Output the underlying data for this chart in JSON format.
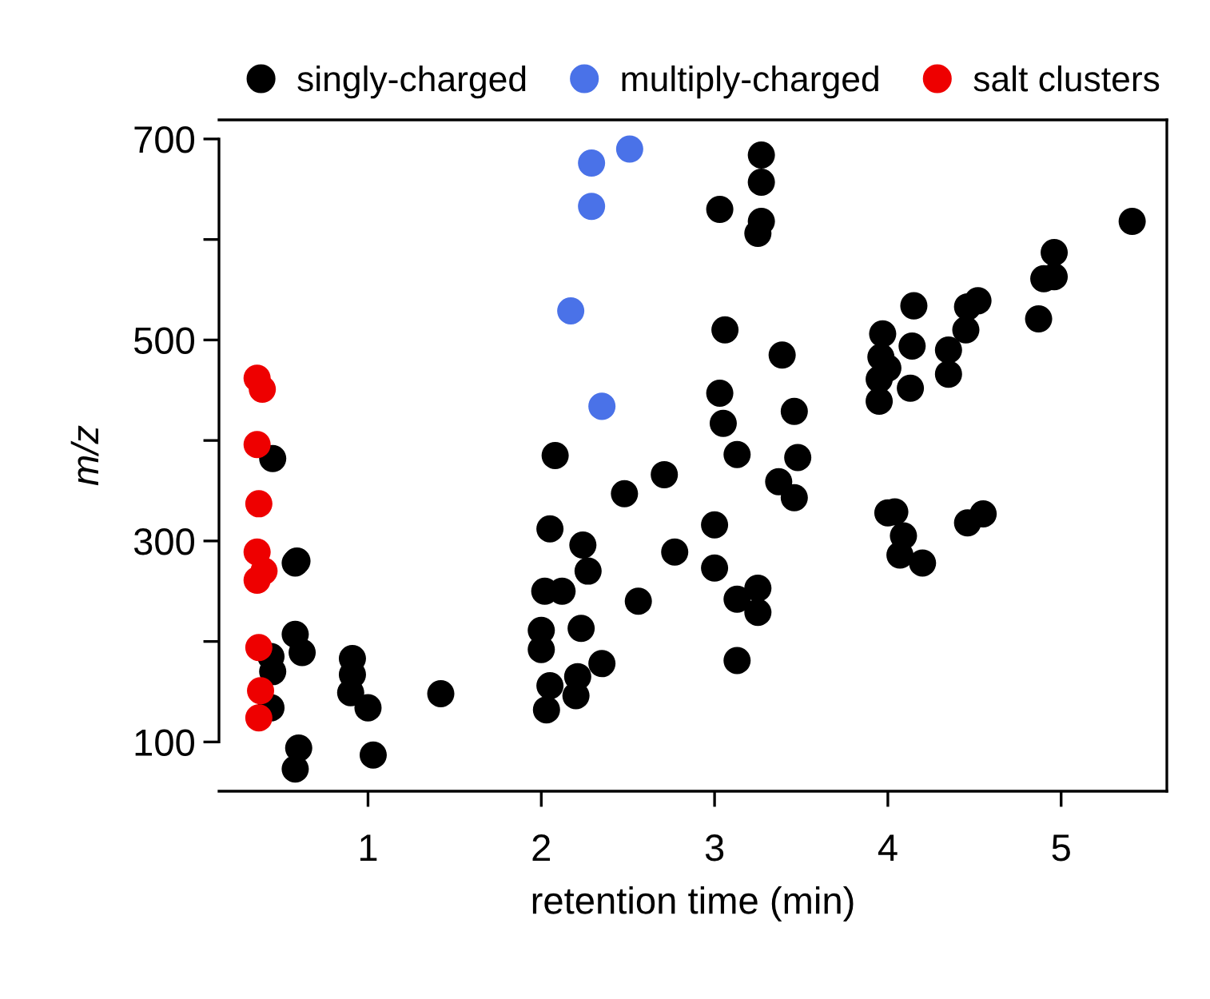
{
  "chart_data": {
    "type": "scatter",
    "xlabel": "retention time (min)",
    "ylabel": "m/z",
    "xlim": [
      0.14,
      5.61
    ],
    "ylim": [
      51,
      719
    ],
    "xticks": [
      1,
      2,
      3,
      4,
      5
    ],
    "yticks": [
      100,
      {
        "value": 200,
        "label": null
      },
      300,
      {
        "value": 400,
        "label": null
      },
      500,
      {
        "value": 600,
        "label": null
      },
      700
    ],
    "grid": false,
    "legend": "top",
    "marker": "circle",
    "series": [
      {
        "name": "singly-charged",
        "color": "#000000",
        "x": [
          0.45,
          0.58,
          0.59,
          0.58,
          0.62,
          0.45,
          0.44,
          0.44,
          0.91,
          0.91,
          0.9,
          1.0,
          1.42,
          0.6,
          0.58,
          1.03,
          3.27,
          3.27,
          3.03,
          3.27,
          3.25,
          3.06,
          3.39,
          3.03,
          3.46,
          3.05,
          3.13,
          3.48,
          3.37,
          3.46,
          2.08,
          2.71,
          2.48,
          2.05,
          2.24,
          2.27,
          3.0,
          2.77,
          3.0,
          2.02,
          2.12,
          2.56,
          3.25,
          3.13,
          3.25,
          2.0,
          2.23,
          2.0,
          2.35,
          3.13,
          2.05,
          2.21,
          2.2,
          2.03,
          5.41,
          4.96,
          4.96,
          4.9,
          4.87,
          4.15,
          4.52,
          4.46,
          4.45,
          3.97,
          4.14,
          4.35,
          3.96,
          4.0,
          3.95,
          4.35,
          4.13,
          3.95,
          4.04,
          4.0,
          4.09,
          4.07,
          4.2,
          4.55,
          4.46
        ],
        "values": [
          382,
          278,
          280,
          207,
          189,
          170,
          134,
          185,
          183,
          167,
          149,
          134,
          148,
          94,
          73,
          87,
          684,
          657,
          630,
          618,
          606,
          510,
          485,
          447,
          429,
          417,
          386,
          383,
          359,
          343,
          385,
          366,
          347,
          312,
          296,
          270,
          316,
          289,
          273,
          250,
          250,
          240,
          253,
          242,
          229,
          211,
          213,
          192,
          178,
          181,
          156,
          165,
          146,
          132,
          618,
          587,
          563,
          561,
          521,
          534,
          539,
          533,
          510,
          506,
          494,
          490,
          483,
          472,
          461,
          466,
          452,
          439,
          329,
          328,
          305,
          286,
          278,
          327,
          318
        ]
      },
      {
        "name": "multiply-charged",
        "color": "#4a72e8",
        "x": [
          2.29,
          2.51,
          2.29,
          2.17,
          2.35
        ],
        "values": [
          676,
          690,
          633,
          529,
          434
        ]
      },
      {
        "name": "salt clusters",
        "color": "#ee0000",
        "x": [
          0.36,
          0.39,
          0.36,
          0.37,
          0.36,
          0.4,
          0.36,
          0.37,
          0.38,
          0.37
        ],
        "values": [
          462,
          451,
          396,
          337,
          289,
          270,
          261,
          194,
          151,
          124
        ]
      }
    ]
  }
}
